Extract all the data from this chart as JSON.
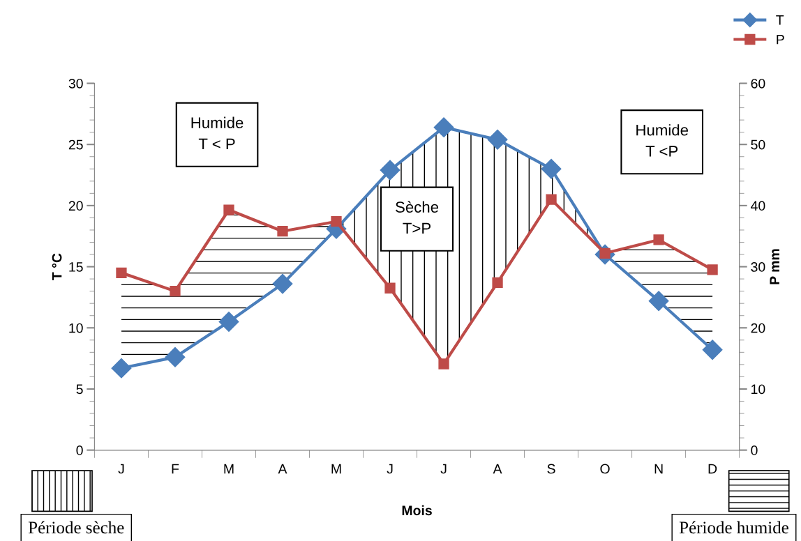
{
  "chart_data": {
    "type": "line",
    "categories": [
      "J",
      "F",
      "M",
      "A",
      "M",
      "J",
      "J",
      "A",
      "S",
      "O",
      "N",
      "D"
    ],
    "series": [
      {
        "name": "T",
        "color": "#4a7ebb",
        "marker": "diamond",
        "values": [
          6.7,
          7.6,
          10.5,
          13.6,
          18.1,
          22.9,
          26.4,
          25.4,
          23.0,
          16.0,
          12.2,
          8.2
        ]
      },
      {
        "name": "P",
        "color": "#be4b48",
        "marker": "square",
        "axis": "y2",
        "values": [
          29.0,
          26.0,
          39.3,
          35.8,
          37.4,
          26.5,
          14.1,
          27.4,
          41.0,
          32.2,
          34.4,
          29.5
        ]
      }
    ],
    "xlabel": "Mois",
    "ylabel": "T °C",
    "y2label": "P mm",
    "ylim": [
      0,
      30
    ],
    "yticks": [
      0,
      5,
      10,
      15,
      20,
      25,
      30
    ],
    "y2lim": [
      0,
      60
    ],
    "y2ticks": [
      0,
      10,
      20,
      30,
      40,
      50,
      60
    ],
    "legend": "top right",
    "grid": false,
    "line_style": "solid",
    "annotations": [
      "Humide\nT < P",
      "Sèche\nT>P",
      "Humide\nT <P",
      "Période sèche",
      "Période humide"
    ]
  }
}
